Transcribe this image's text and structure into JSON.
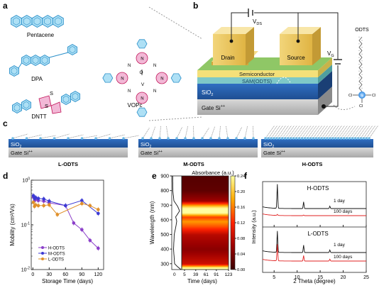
{
  "panels": {
    "a": {
      "letter": "a",
      "molecules": [
        "Pentacene",
        "DPA",
        "DNTT",
        "VOPc"
      ],
      "atoms": {
        "N": "N",
        "O": "O",
        "V": "V",
        "S": "S"
      }
    },
    "b": {
      "letter": "b",
      "drain": "Drain",
      "source": "Source",
      "vds_main": "V",
      "vds_sub": "DS",
      "vg_main": "V",
      "vg_sub": "G",
      "semiconductor": "Semiconductor",
      "sam": "SAM(ODTS)",
      "sio2": "SiO",
      "sio2_sub": "2",
      "gate": "Gate Si",
      "gate_sup": "++",
      "odts": "ODTS",
      "si": "Si",
      "cl": "Cl"
    },
    "c": {
      "letter": "c",
      "sio2": "SiO",
      "sio2_sub": "2",
      "gate": "Gate Si",
      "gate_sup": "++",
      "labels": [
        "L-ODTS",
        "M-ODTS",
        "H-ODTS"
      ]
    },
    "d": {
      "letter": "d"
    },
    "e": {
      "letter": "e"
    },
    "f": {
      "letter": "f"
    }
  },
  "chart_data": [
    {
      "panel": "d",
      "type": "line",
      "xlabel": "Storage Time (days)",
      "ylabel": "Mobility (cm²/Vs)",
      "xlim": [
        -3,
        130
      ],
      "ylim": [
        0.01,
        1
      ],
      "yscale": "log",
      "xticks": [
        0,
        30,
        60,
        90,
        120
      ],
      "yticks": [
        {
          "v": 1,
          "b": "10",
          "e": "0"
        },
        {
          "v": 0.1,
          "b": "10",
          "e": "-1"
        },
        {
          "v": 0.01,
          "b": "10",
          "e": "-2"
        }
      ],
      "legend_position": "bottom-left",
      "series": [
        {
          "name": "H-ODTS",
          "color": "#8b3fc9",
          "x": [
            1,
            3,
            5,
            10,
            20,
            30,
            60,
            75,
            90,
            105,
            120
          ],
          "y": [
            0.42,
            0.35,
            0.37,
            0.35,
            0.34,
            0.31,
            0.27,
            0.11,
            0.078,
            0.045,
            0.03
          ]
        },
        {
          "name": "M-ODTS",
          "color": "#3c3ad4",
          "x": [
            1,
            3,
            5,
            10,
            20,
            30,
            60,
            90,
            120
          ],
          "y": [
            0.45,
            0.39,
            0.41,
            0.39,
            0.38,
            0.34,
            0.27,
            0.35,
            0.18
          ]
        },
        {
          "name": "L-ODTS",
          "color": "#e0902b",
          "x": [
            1,
            3,
            5,
            10,
            20,
            30,
            45,
            90,
            105,
            120
          ],
          "y": [
            0.32,
            0.26,
            0.28,
            0.27,
            0.27,
            0.28,
            0.17,
            0.3,
            0.27,
            0.22
          ]
        }
      ]
    },
    {
      "panel": "e",
      "type": "heatmap",
      "title": "Absorbance (a.u.)",
      "xlabel": "Time (days)",
      "ylabel": "Wavelength (nm)",
      "xticks": [
        0,
        5,
        39,
        61,
        91,
        123
      ],
      "yticks": [
        300,
        400,
        500,
        600,
        700,
        800,
        900
      ],
      "ylim": [
        260,
        900
      ],
      "colorbar_ticks": [
        0.0,
        0.04,
        0.08,
        0.12,
        0.16,
        0.2,
        0.24
      ],
      "colorbar_range": [
        0,
        0.24
      ],
      "absorbance_profile": [
        [
          260,
          0.24
        ],
        [
          280,
          0.14
        ],
        [
          300,
          0.06
        ],
        [
          400,
          0.03
        ],
        [
          500,
          0.05
        ],
        [
          560,
          0.1
        ],
        [
          590,
          0.12
        ],
        [
          620,
          0.09
        ],
        [
          660,
          0.2
        ],
        [
          690,
          0.15
        ],
        [
          730,
          0.04
        ],
        [
          800,
          0.01
        ],
        [
          900,
          0.005
        ]
      ]
    },
    {
      "panel": "f",
      "type": "line",
      "xlabel": "2 Theta (degree)",
      "ylabel": "Intensity (a.u.)",
      "xlim": [
        2.5,
        25
      ],
      "xticks": [
        5,
        10,
        15,
        20,
        25
      ],
      "subplots": [
        {
          "title": "H-ODTS",
          "series": [
            {
              "name": "1 day",
              "color": "#111111",
              "peaks": [
                [
                  5.7,
                  1.0
                ],
                [
                  11.4,
                  0.28
                ],
                [
                  17.1,
                  0.1
                ]
              ]
            },
            {
              "name": "100 days",
              "color": "#e02020",
              "peaks": [
                [
                  5.7,
                  0.05
                ],
                [
                  11.4,
                  0.03
                ]
              ]
            }
          ]
        },
        {
          "title": "L-ODTS",
          "series": [
            {
              "name": "1 day",
              "color": "#111111",
              "peaks": [
                [
                  5.7,
                  1.0
                ],
                [
                  11.4,
                  0.35
                ],
                [
                  17.1,
                  0.12
                ]
              ]
            },
            {
              "name": "100 days",
              "color": "#e02020",
              "peaks": [
                [
                  5.7,
                  0.9
                ],
                [
                  11.4,
                  0.3
                ],
                [
                  17.1,
                  0.1
                ]
              ]
            }
          ]
        }
      ]
    }
  ]
}
